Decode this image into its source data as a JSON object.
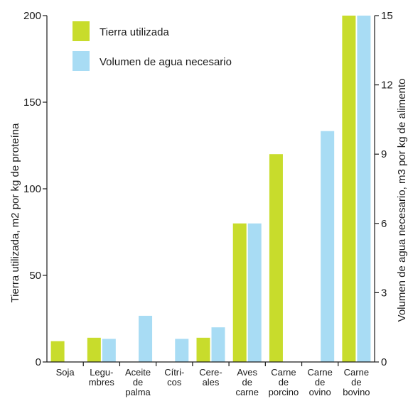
{
  "chart_data": {
    "type": "bar",
    "categories": [
      [
        "Soja"
      ],
      [
        "Legu-",
        "mbres"
      ],
      [
        "Aceite",
        "de",
        "palma"
      ],
      [
        "Cítri-",
        "cos"
      ],
      [
        "Cere-",
        "ales"
      ],
      [
        "Aves",
        "de",
        "carne"
      ],
      [
        "Carne",
        "de",
        "porcino"
      ],
      [
        "Carne",
        "de",
        "ovino"
      ],
      [
        "Carne",
        "de",
        "bovino"
      ]
    ],
    "series": [
      {
        "name": "Tierra utilizada",
        "axis": "left",
        "color": "#c8dc2c",
        "values": [
          12,
          14,
          0,
          0,
          14,
          80,
          120,
          0,
          200
        ]
      },
      {
        "name": "Volumen de agua necesario",
        "axis": "right",
        "color": "#a8dcf4",
        "values": [
          0,
          1.0,
          2.0,
          1.0,
          1.5,
          6,
          0,
          10,
          15
        ]
      }
    ],
    "ylabel": "Tierra utilizada, m2 por kg de proteína",
    "ylabel_right": "Volumen de agua necesario, m3 por kg de alimento",
    "ylim": [
      0,
      200
    ],
    "yticks": [
      0,
      50,
      100,
      150,
      200
    ],
    "ylim_right": [
      0,
      15
    ],
    "yticks_right": [
      0,
      3,
      6,
      9,
      12,
      15
    ],
    "legend_position": "top-left",
    "grid": false
  }
}
